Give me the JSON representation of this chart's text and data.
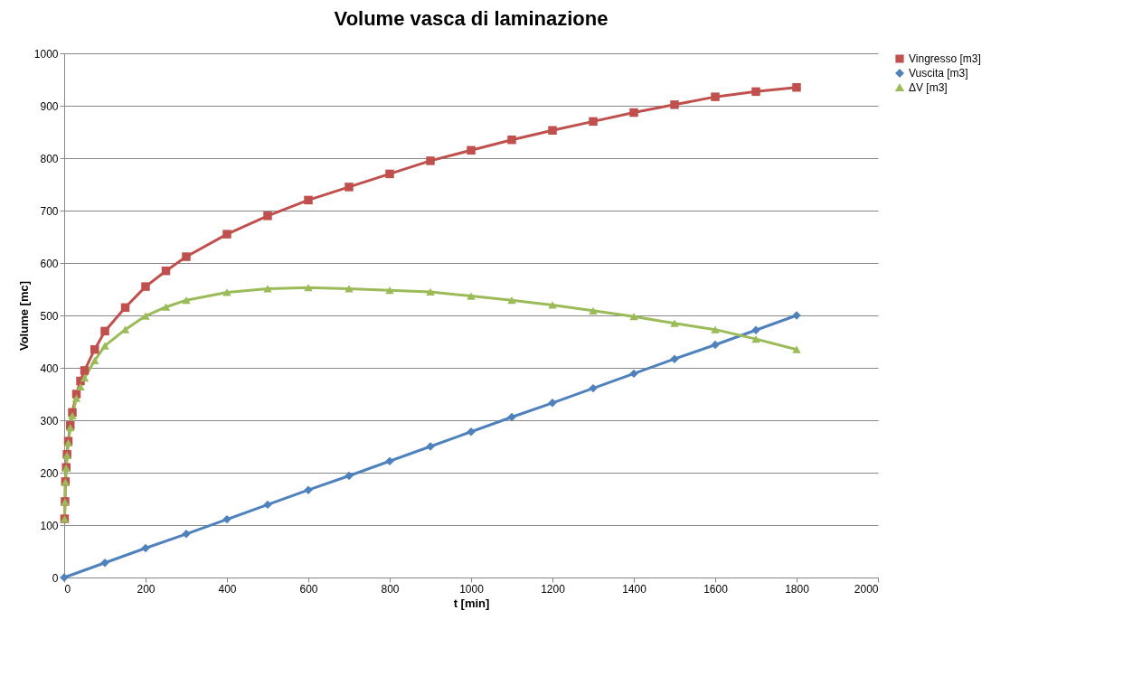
{
  "chart_data": {
    "type": "line",
    "title": "Volume vasca di laminazione",
    "xlabel": "t [min]",
    "ylabel": "Volume [mc]",
    "xlim": [
      0,
      2000
    ],
    "xticks": [
      0,
      200,
      400,
      600,
      800,
      1000,
      1200,
      1400,
      1600,
      1800,
      2000
    ],
    "ylim": [
      0,
      1000
    ],
    "yticks": [
      0,
      100,
      200,
      300,
      400,
      500,
      600,
      700,
      800,
      900,
      1000
    ],
    "grid": "y",
    "legend": "right",
    "series": [
      {
        "name": "Vingresso [m3]",
        "color": "#c0504d",
        "marker": "square",
        "x": [
          1,
          2,
          3,
          5,
          7,
          10,
          15,
          20,
          30,
          40,
          50,
          75,
          100,
          150,
          200,
          250,
          300,
          400,
          500,
          600,
          700,
          800,
          900,
          1000,
          1100,
          1200,
          1300,
          1400,
          1500,
          1600,
          1700,
          1800
        ],
        "values": [
          112,
          145,
          183,
          210,
          235,
          260,
          290,
          315,
          350,
          375,
          395,
          435,
          470,
          515,
          555,
          585,
          612,
          655,
          690,
          720,
          745,
          770,
          795,
          815,
          835,
          853,
          870,
          887,
          902,
          917,
          927,
          935
        ]
      },
      {
        "name": "Vuscita [m3]",
        "color": "#4f81bd",
        "marker": "diamond",
        "x": [
          0,
          100,
          200,
          300,
          400,
          500,
          600,
          700,
          800,
          900,
          1000,
          1100,
          1200,
          1300,
          1400,
          1500,
          1600,
          1700,
          1800
        ],
        "values": [
          0,
          28,
          56,
          83,
          111,
          139,
          167,
          194,
          222,
          250,
          278,
          306,
          333,
          361,
          389,
          417,
          444,
          472,
          500
        ]
      },
      {
        "name": "ΔV [m3]",
        "color": "#9bbb59",
        "marker": "triangle",
        "x": [
          1,
          2,
          3,
          5,
          7,
          10,
          15,
          20,
          30,
          40,
          50,
          75,
          100,
          150,
          200,
          250,
          300,
          400,
          500,
          600,
          700,
          800,
          900,
          1000,
          1100,
          1200,
          1300,
          1400,
          1500,
          1600,
          1700,
          1800
        ],
        "values": [
          112,
          144,
          182,
          209,
          233,
          257,
          286,
          309,
          342,
          364,
          381,
          414,
          442,
          473,
          499,
          516,
          529,
          544,
          551,
          553,
          551,
          548,
          545,
          537,
          529,
          520,
          509,
          498,
          485,
          473,
          455,
          435
        ]
      }
    ]
  }
}
